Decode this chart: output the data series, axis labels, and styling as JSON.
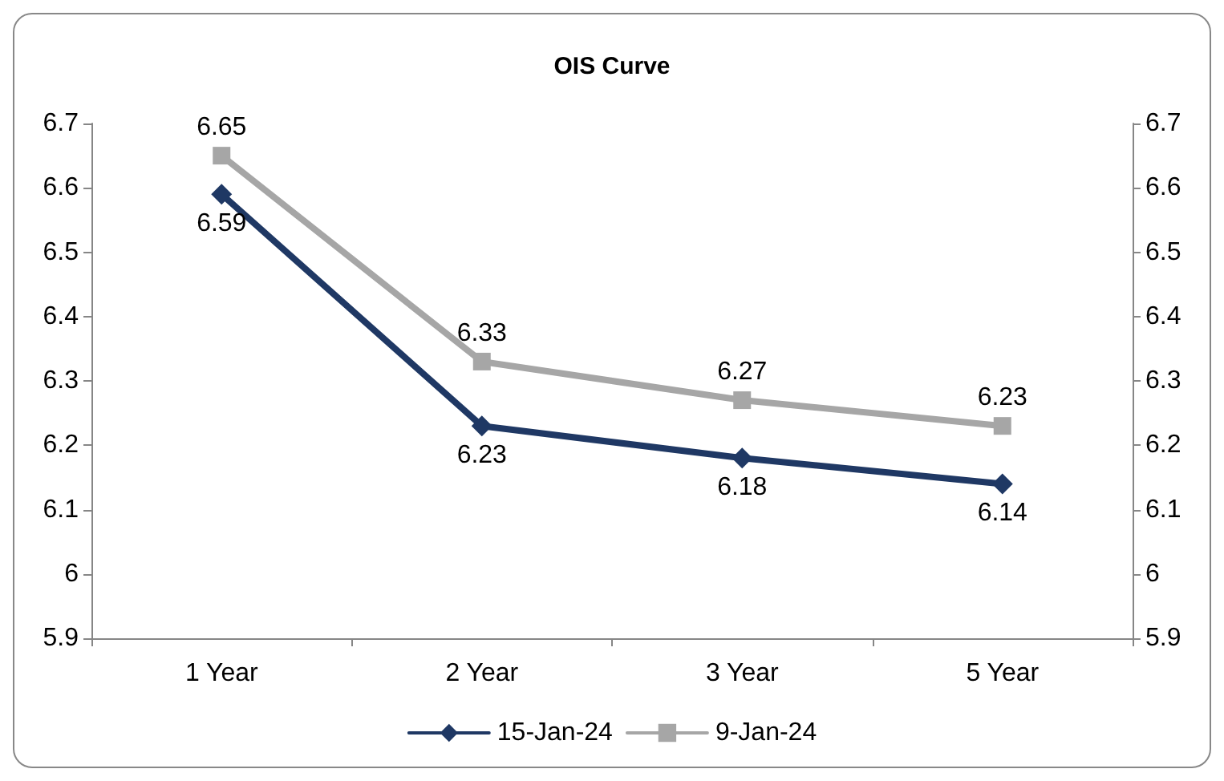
{
  "chart_data": {
    "type": "line",
    "title": "OIS Curve",
    "categories": [
      "1 Year",
      "2 Year",
      "3 Year",
      "5 Year"
    ],
    "series": [
      {
        "name": "15-Jan-24",
        "color": "#1f3864",
        "marker": "diamond",
        "values": [
          6.59,
          6.23,
          6.18,
          6.14
        ]
      },
      {
        "name": "9-Jan-24",
        "color": "#a6a6a6",
        "marker": "square",
        "values": [
          6.65,
          6.33,
          6.27,
          6.23
        ]
      }
    ],
    "ylim": [
      5.9,
      6.7
    ],
    "yticks": [
      5.9,
      6,
      6.1,
      6.2,
      6.3,
      6.4,
      6.5,
      6.6,
      6.7
    ],
    "y2lim": [
      5.9,
      6.7
    ],
    "y2ticks": [
      5.9,
      6,
      6.1,
      6.2,
      6.3,
      6.4,
      6.5,
      6.6,
      6.7
    ],
    "grid": false,
    "legend": "bottom",
    "data_labels": true,
    "line_style": "solid"
  }
}
